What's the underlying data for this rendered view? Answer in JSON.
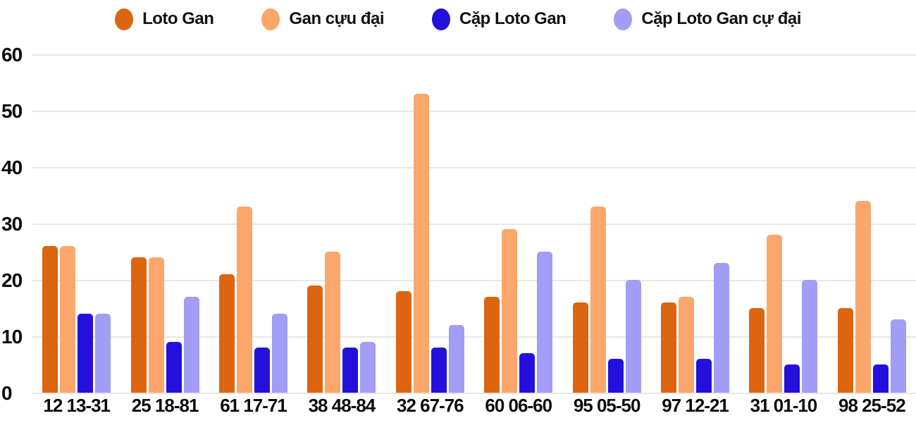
{
  "chart_data": {
    "type": "bar",
    "title": "",
    "xlabel": "",
    "ylabel": "",
    "categories": [
      "12 13-31",
      "25 18-81",
      "61 17-71",
      "38 48-84",
      "32 67-76",
      "60 06-60",
      "95 05-50",
      "97 12-21",
      "31 01-10",
      "98 25-52"
    ],
    "series": [
      {
        "name": "Loto Gan",
        "color": "#dc650f",
        "values": [
          26,
          24,
          21,
          19,
          18,
          17,
          16,
          16,
          15,
          15
        ]
      },
      {
        "name": "Gan cựu đại",
        "color": "#fba76b",
        "values": [
          26,
          24,
          33,
          25,
          53,
          29,
          33,
          17,
          28,
          34
        ]
      },
      {
        "name": "Cặp Loto Gan",
        "color": "#2410dc",
        "values": [
          14,
          9,
          8,
          8,
          8,
          7,
          6,
          6,
          5,
          5
        ]
      },
      {
        "name": "Cặp Loto Gan cự đại",
        "color": "#a29df5",
        "values": [
          14,
          17,
          14,
          9,
          12,
          25,
          20,
          23,
          20,
          13
        ]
      }
    ],
    "ylim": [
      0,
      60
    ],
    "yticks": [
      0,
      10,
      20,
      30,
      40,
      50,
      60
    ],
    "grid": true,
    "legend_position": "top",
    "background": "#ffffff",
    "gridline_color": "#e6e6e6",
    "text_color": "#0c0c0c"
  }
}
